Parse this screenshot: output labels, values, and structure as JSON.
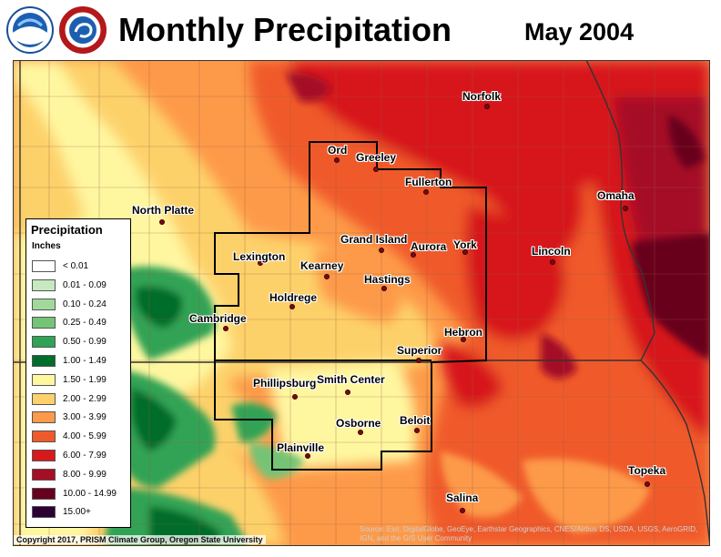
{
  "header": {
    "title": "Monthly Precipitation",
    "date": "May 2004",
    "logos": [
      "noaa-logo",
      "national-weather-service-logo"
    ]
  },
  "legend": {
    "title": "Precipitation",
    "units": "Inches",
    "classes": [
      {
        "label": "< 0.01",
        "color": "#ffffff"
      },
      {
        "label": "0.01 - 0.09",
        "color": "#c7e9c0"
      },
      {
        "label": "0.10 - 0.24",
        "color": "#a1d99b"
      },
      {
        "label": "0.25 - 0.49",
        "color": "#74c476"
      },
      {
        "label": "0.50 - 0.99",
        "color": "#31a354"
      },
      {
        "label": "1.00 - 1.49",
        "color": "#006d2c"
      },
      {
        "label": "1.50 - 1.99",
        "color": "#fff7a0"
      },
      {
        "label": "2.00 - 2.99",
        "color": "#fdd16b"
      },
      {
        "label": "3.00 - 3.99",
        "color": "#fd9a49"
      },
      {
        "label": "4.00 - 5.99",
        "color": "#f05a2a"
      },
      {
        "label": "6.00 - 7.99",
        "color": "#d7191c"
      },
      {
        "label": "8.00 - 9.99",
        "color": "#a50f26"
      },
      {
        "label": "10.00 - 14.99",
        "color": "#67001f"
      },
      {
        "label": "15.00+",
        "color": "#2d0036"
      }
    ]
  },
  "cities": [
    {
      "name": "Norfolk"
    },
    {
      "name": "Ord"
    },
    {
      "name": "Greeley"
    },
    {
      "name": "Fullerton"
    },
    {
      "name": "North Platte"
    },
    {
      "name": "Omaha"
    },
    {
      "name": "Grand Island"
    },
    {
      "name": "Aurora"
    },
    {
      "name": "York"
    },
    {
      "name": "Lincoln"
    },
    {
      "name": "Lexington"
    },
    {
      "name": "Kearney"
    },
    {
      "name": "Hastings"
    },
    {
      "name": "Holdrege"
    },
    {
      "name": "Cambridge"
    },
    {
      "name": "Hebron"
    },
    {
      "name": "Superior"
    },
    {
      "name": "Phillipsburg"
    },
    {
      "name": "Smith Center"
    },
    {
      "name": "Osborne"
    },
    {
      "name": "Beloit"
    },
    {
      "name": "Plainville"
    },
    {
      "name": "Topeka"
    },
    {
      "name": "Salina"
    }
  ],
  "credits": {
    "copyright": "Copyright 2017, PRISM Climate Group, Oregon State University",
    "source": "Source: Esri, DigitalGlobe, GeoEye, Earthstar Geographics, CNES/Airbus DS, USDA, USGS, AeroGRID, IGN, and the GIS User Community"
  }
}
